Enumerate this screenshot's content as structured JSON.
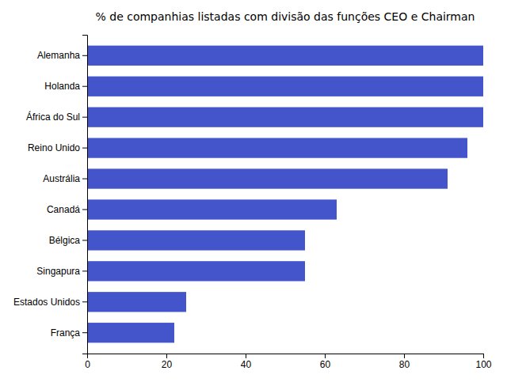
{
  "chart_data": {
    "type": "bar",
    "orientation": "horizontal",
    "title": "% de companhias listadas com divisão das funções CEO e Chairman",
    "categories": [
      "Alemanha",
      "Holanda",
      "África do Sul",
      "Reino Unido",
      "Austrália",
      "Canadá",
      "Bélgica",
      "Singapura",
      "Estados Unidos",
      "França"
    ],
    "values": [
      100,
      100,
      100,
      96,
      91,
      63,
      55,
      55,
      25,
      22
    ],
    "color": "#4455cc",
    "xlim": [
      0,
      100
    ],
    "xticks": [
      0,
      20,
      40,
      60,
      80,
      100
    ],
    "grid": false
  }
}
